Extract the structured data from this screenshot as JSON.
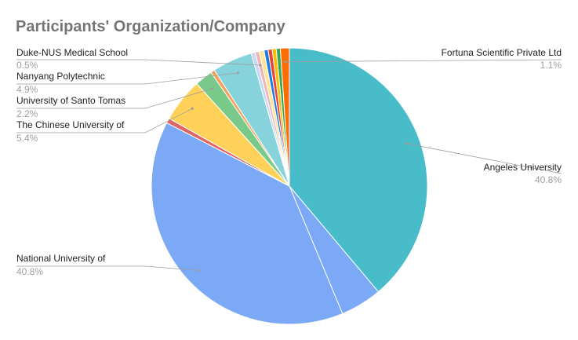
{
  "chart_data": {
    "type": "pie",
    "title": "Participants' Organization/Company",
    "slices": [
      {
        "name": "Angeles University",
        "value": 40.8,
        "label_pct": "40.8%",
        "color": "#48BDC9",
        "labeled": true
      },
      {
        "name": "",
        "value": 5.1,
        "color": "#7BA9F5",
        "labeled": false
      },
      {
        "name": "National University of",
        "value": 40.8,
        "label_pct": "40.8%",
        "color": "#7BA9F5",
        "labeled": true
      },
      {
        "name": "",
        "value": 0.6,
        "color": "#E06666",
        "labeled": false
      },
      {
        "name": "The Chinese University of",
        "value": 5.4,
        "label_pct": "5.4%",
        "color": "#FFD159",
        "labeled": true
      },
      {
        "name": "University of Santo Tomas",
        "value": 2.2,
        "label_pct": "2.2%",
        "color": "#79C98A",
        "labeled": true
      },
      {
        "name": "",
        "value": 0.5,
        "color": "#F4A25B",
        "labeled": false
      },
      {
        "name": "Nanyang Polytechnic",
        "value": 4.9,
        "label_pct": "4.9%",
        "color": "#86D3DC",
        "labeled": true
      },
      {
        "name": "",
        "value": 0.5,
        "color": "#C6D9F8",
        "labeled": false
      },
      {
        "name": "Duke-NUS Medical School",
        "value": 0.5,
        "label_pct": "0.5%",
        "color": "#EFB4B4",
        "labeled": true
      },
      {
        "name": "",
        "value": 0.6,
        "color": "#FFE59A",
        "labeled": false
      },
      {
        "name": "",
        "value": 0.5,
        "color": "#1E7BE0",
        "labeled": false
      },
      {
        "name": "",
        "value": 0.5,
        "color": "#EA4335",
        "labeled": false
      },
      {
        "name": "",
        "value": 0.5,
        "color": "#FBBC04",
        "labeled": false
      },
      {
        "name": "",
        "value": 0.5,
        "color": "#34A853",
        "labeled": false
      },
      {
        "name": "Fortuna Scientific Private Ltd",
        "value": 1.1,
        "label_pct": "1.1%",
        "color": "#FF6D01",
        "labeled": true
      }
    ],
    "legend": "none"
  }
}
